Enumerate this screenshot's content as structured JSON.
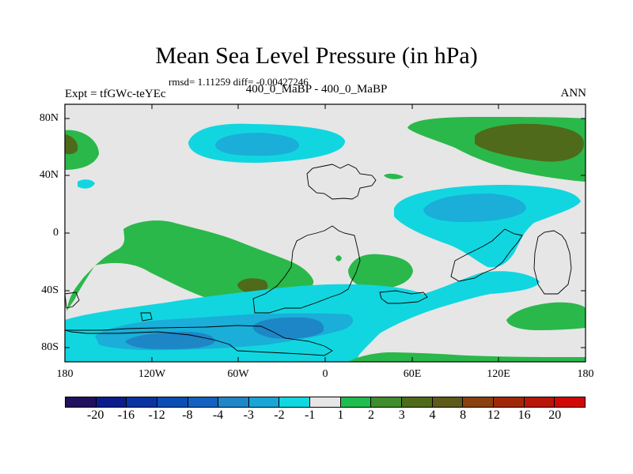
{
  "title": "Mean Sea Level Pressure (in hPa)",
  "stats": "rmsd= 1.11259 diff= -0.00427246",
  "experiment": "Expt = tfGWc-teYEc",
  "comparison": "400_0_MaBP - 400_0_MaBP",
  "season": "ANN",
  "lat_labels": [
    "80N",
    "40N",
    "0",
    "40S",
    "80S"
  ],
  "lon_labels": [
    "180",
    "120W",
    "60W",
    "0",
    "60E",
    "120E",
    "180"
  ],
  "colorbar": {
    "labels": [
      "-20",
      "-16",
      "-12",
      "-8",
      "-4",
      "-3",
      "-2",
      "-1",
      "1",
      "2",
      "3",
      "4",
      "8",
      "12",
      "16",
      "20"
    ],
    "colors": [
      "#22105f",
      "#0b1c8c",
      "#0a32a0",
      "#0a4db5",
      "#1560c0",
      "#1f86c8",
      "#19a6d6",
      "#10d8e0",
      "#e6e6e6",
      "#1fbd4e",
      "#3f8d2c",
      "#4e6a1a",
      "#5f5a1a",
      "#8a4010",
      "#a02808",
      "#b81608",
      "#d00808"
    ]
  },
  "colors": {
    "neutral": "#e6e6e6",
    "pos1": "#2ab84a",
    "pos2": "#4e6a1a",
    "neg1": "#11d6e0",
    "neg2": "#1aaed8",
    "neg3": "#1d86c6"
  }
}
